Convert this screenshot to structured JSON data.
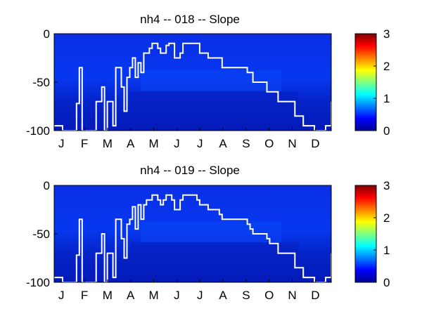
{
  "chart_data": [
    {
      "type": "heatmap",
      "title": "nh4 -- 018 -- Slope",
      "x_tick_labels": [
        "J",
        "F",
        "M",
        "A",
        "M",
        "J",
        "J",
        "A",
        "S",
        "O",
        "N",
        "D"
      ],
      "y_ticks": [
        0,
        -50,
        -100
      ],
      "ylim": [
        -100,
        0
      ],
      "colorbar": {
        "range": [
          0,
          3
        ],
        "ticks": [
          0,
          1,
          2,
          3
        ],
        "colormap": "jet"
      },
      "field_value": 0.2,
      "line": {
        "color": "#ffffff",
        "x": [
          1,
          4,
          5,
          6,
          7,
          8,
          9,
          10,
          11,
          12,
          13,
          14,
          15,
          16,
          17,
          18,
          19,
          20,
          21,
          22,
          23,
          24,
          25,
          26,
          27,
          28,
          29,
          30,
          31,
          32,
          33,
          34,
          35,
          36,
          37,
          38,
          39,
          40,
          41,
          42,
          43,
          44,
          45,
          46,
          47,
          48,
          49,
          50,
          51,
          52,
          53,
          54,
          55,
          56,
          57,
          58,
          59,
          60,
          61,
          62,
          63,
          64,
          65,
          66,
          67,
          68,
          69,
          70,
          71,
          72,
          73,
          74,
          75,
          76,
          77,
          78,
          79,
          80,
          81,
          82,
          83,
          84,
          85,
          86,
          87,
          88,
          89,
          90,
          91,
          92,
          93,
          94,
          95,
          96,
          97,
          98,
          99,
          100
        ],
        "y": [
          -95,
          -100,
          -100,
          -100,
          -100,
          -100,
          -72,
          -35,
          -100,
          -100,
          -100,
          -100,
          -100,
          -70,
          -70,
          -55,
          -100,
          -70,
          -70,
          -95,
          -35,
          -35,
          -55,
          -80,
          -45,
          -35,
          -25,
          -45,
          -30,
          -40,
          -20,
          -20,
          -15,
          -10,
          -10,
          -15,
          -20,
          -20,
          -12,
          -10,
          -10,
          -25,
          -25,
          -20,
          -10,
          -10,
          -10,
          -10,
          -10,
          -10,
          -20,
          -20,
          -20,
          -25,
          -25,
          -25,
          -25,
          -25,
          -35,
          -35,
          -35,
          -35,
          -35,
          -35,
          -35,
          -35,
          -35,
          -40,
          -40,
          -50,
          -50,
          -50,
          -50,
          -50,
          -60,
          -60,
          -60,
          -60,
          -70,
          -70,
          -70,
          -70,
          -70,
          -70,
          -85,
          -85,
          -85,
          -95,
          -95,
          -95,
          -95,
          -100,
          -100,
          -100,
          -100,
          -95,
          -95,
          -70
        ]
      }
    },
    {
      "type": "heatmap",
      "title": "nh4 -- 019 -- Slope",
      "x_tick_labels": [
        "J",
        "F",
        "M",
        "A",
        "M",
        "J",
        "J",
        "A",
        "S",
        "O",
        "N",
        "D"
      ],
      "y_ticks": [
        0,
        -50,
        -100
      ],
      "ylim": [
        -100,
        0
      ],
      "colorbar": {
        "range": [
          0,
          3
        ],
        "ticks": [
          0,
          1,
          2,
          3
        ],
        "colormap": "jet"
      },
      "field_value": 0.2,
      "line": {
        "color": "#ffffff",
        "x": [
          1,
          4,
          5,
          6,
          7,
          8,
          9,
          10,
          11,
          12,
          13,
          14,
          15,
          16,
          17,
          18,
          19,
          20,
          21,
          22,
          23,
          24,
          25,
          26,
          27,
          28,
          29,
          30,
          31,
          32,
          33,
          34,
          35,
          36,
          37,
          38,
          39,
          40,
          41,
          42,
          43,
          44,
          45,
          46,
          47,
          48,
          49,
          50,
          51,
          52,
          53,
          54,
          55,
          56,
          57,
          58,
          59,
          60,
          61,
          62,
          63,
          64,
          65,
          66,
          67,
          68,
          69,
          70,
          71,
          72,
          73,
          74,
          75,
          76,
          77,
          78,
          79,
          80,
          81,
          82,
          83,
          84,
          85,
          86,
          87,
          88,
          89,
          90,
          91,
          92,
          93,
          94,
          95,
          96,
          97,
          98,
          99,
          100
        ],
        "y": [
          -95,
          -100,
          -100,
          -100,
          -100,
          -100,
          -72,
          -35,
          -100,
          -100,
          -100,
          -100,
          -100,
          -70,
          -70,
          -50,
          -100,
          -70,
          -70,
          -95,
          -35,
          -35,
          -55,
          -75,
          -40,
          -35,
          -22,
          -45,
          -20,
          -35,
          -20,
          -15,
          -15,
          -10,
          -10,
          -15,
          -20,
          -15,
          -10,
          -10,
          -15,
          -25,
          -25,
          -15,
          -10,
          -10,
          -10,
          -10,
          -10,
          -15,
          -20,
          -20,
          -20,
          -25,
          -25,
          -25,
          -25,
          -30,
          -35,
          -35,
          -35,
          -35,
          -35,
          -35,
          -35,
          -35,
          -35,
          -40,
          -45,
          -50,
          -50,
          -50,
          -50,
          -50,
          -55,
          -60,
          -60,
          -60,
          -70,
          -70,
          -70,
          -70,
          -70,
          -70,
          -85,
          -85,
          -85,
          -95,
          -95,
          -95,
          -95,
          -100,
          -100,
          -100,
          -100,
          -95,
          -95,
          -70
        ]
      }
    }
  ]
}
